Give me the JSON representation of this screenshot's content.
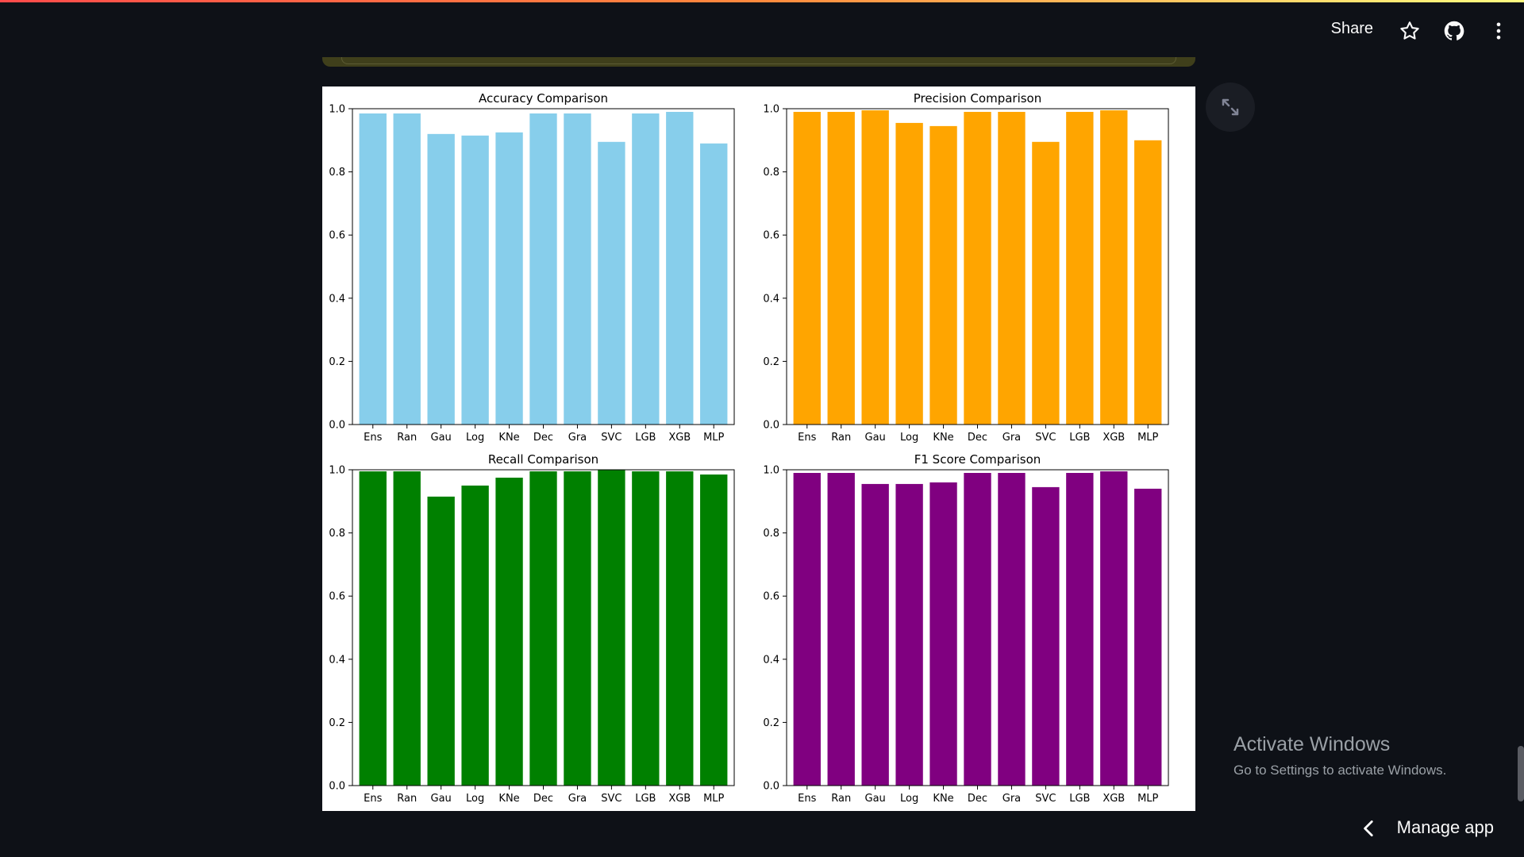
{
  "header": {
    "share_label": "Share",
    "icons": [
      "star-icon",
      "github-icon",
      "more-vertical-icon"
    ]
  },
  "fullscreen_icon": "expand-icon",
  "windows_notice": {
    "title": "Activate Windows",
    "subtitle": "Go to Settings to activate Windows."
  },
  "manage_app": {
    "label": "Manage app",
    "icon": "chevron-left-icon"
  },
  "colors": {
    "background": "#0e1117",
    "accuracy": "#87ceeb",
    "precision": "#ffa500",
    "recall": "#008000",
    "f1": "#800080"
  },
  "chart_data": [
    {
      "type": "bar",
      "title": "Accuracy Comparison",
      "categories": [
        "Ens",
        "Ran",
        "Gau",
        "Log",
        "KNe",
        "Dec",
        "Gra",
        "SVC",
        "LGB",
        "XGB",
        "MLP"
      ],
      "values": [
        0.985,
        0.985,
        0.92,
        0.915,
        0.925,
        0.985,
        0.985,
        0.895,
        0.985,
        0.99,
        0.89
      ],
      "ylim": [
        0,
        1.0
      ],
      "yticks": [
        "0.0",
        "0.2",
        "0.4",
        "0.6",
        "0.8",
        "1.0"
      ],
      "color": "#87ceeb"
    },
    {
      "type": "bar",
      "title": "Precision Comparison",
      "categories": [
        "Ens",
        "Ran",
        "Gau",
        "Log",
        "KNe",
        "Dec",
        "Gra",
        "SVC",
        "LGB",
        "XGB",
        "MLP"
      ],
      "values": [
        0.99,
        0.99,
        0.995,
        0.955,
        0.945,
        0.99,
        0.99,
        0.895,
        0.99,
        0.995,
        0.9
      ],
      "ylim": [
        0,
        1.0
      ],
      "yticks": [
        "0.0",
        "0.2",
        "0.4",
        "0.6",
        "0.8",
        "1.0"
      ],
      "color": "#ffa500"
    },
    {
      "type": "bar",
      "title": "Recall Comparison",
      "categories": [
        "Ens",
        "Ran",
        "Gau",
        "Log",
        "KNe",
        "Dec",
        "Gra",
        "SVC",
        "LGB",
        "XGB",
        "MLP"
      ],
      "values": [
        0.995,
        0.995,
        0.915,
        0.95,
        0.975,
        0.995,
        0.995,
        1.0,
        0.995,
        0.995,
        0.985
      ],
      "ylim": [
        0,
        1.0
      ],
      "yticks": [
        "0.0",
        "0.2",
        "0.4",
        "0.6",
        "0.8",
        "1.0"
      ],
      "color": "#008000"
    },
    {
      "type": "bar",
      "title": "F1 Score Comparison",
      "categories": [
        "Ens",
        "Ran",
        "Gau",
        "Log",
        "KNe",
        "Dec",
        "Gra",
        "SVC",
        "LGB",
        "XGB",
        "MLP"
      ],
      "values": [
        0.99,
        0.99,
        0.955,
        0.955,
        0.96,
        0.99,
        0.99,
        0.945,
        0.99,
        0.995,
        0.94
      ],
      "ylim": [
        0,
        1.0
      ],
      "yticks": [
        "0.0",
        "0.2",
        "0.4",
        "0.6",
        "0.8",
        "1.0"
      ],
      "color": "#800080"
    }
  ]
}
